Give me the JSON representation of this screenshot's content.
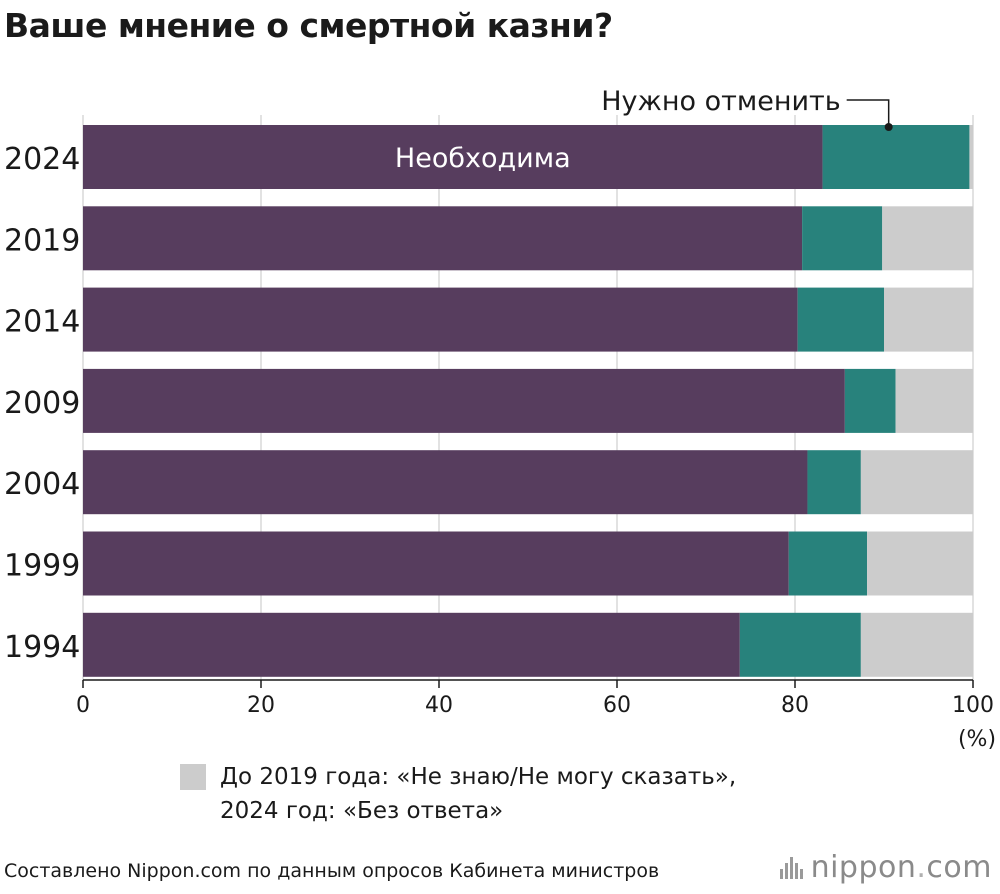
{
  "title": "Ваше мнение о смертной казни?",
  "chart_data": {
    "type": "bar",
    "orientation": "horizontal",
    "stacked": true,
    "categories": [
      "2024",
      "2019",
      "2014",
      "2009",
      "2004",
      "1999",
      "1994"
    ],
    "series": [
      {
        "name": "Необходима",
        "values": [
          83.1,
          80.8,
          80.3,
          85.6,
          81.4,
          79.3,
          73.8
        ],
        "color": "#573d5e"
      },
      {
        "name": "Нужно отменить",
        "values": [
          16.5,
          9.0,
          9.7,
          5.7,
          6.0,
          8.8,
          13.6
        ],
        "color": "#28827c"
      },
      {
        "name": "До 2019 года: «Не знаю/Не могу сказать», 2024 год: «Без ответа»",
        "values": [
          0.4,
          10.2,
          10.0,
          8.7,
          12.6,
          11.9,
          12.6
        ],
        "color": "#cccccc"
      }
    ],
    "xlim": [
      0,
      100
    ],
    "xticks": [
      "0",
      "20",
      "40",
      "60",
      "80",
      "100"
    ],
    "xunit": "(%)",
    "grid": true,
    "annotations": {
      "inside_label": "Необходима",
      "callout_label": "Нужно отменить"
    }
  },
  "legend": {
    "line1": "До 2019 года: «Не знаю/Не могу сказать»,",
    "line2": "2024 год: «Без ответа»"
  },
  "source": "Составлено Nippon.com по данным опросов Кабинета министров",
  "logo": {
    "main": "nippon",
    "dot": ".",
    "suffix": "com"
  }
}
